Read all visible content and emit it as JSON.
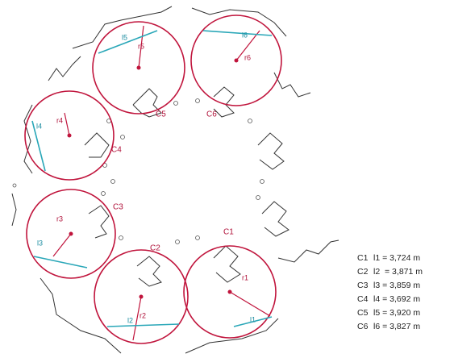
{
  "circles": [
    {
      "label": "C1",
      "radius_label": "r1",
      "chord_label": "l1"
    },
    {
      "label": "C2",
      "radius_label": "r2",
      "chord_label": "l2"
    },
    {
      "label": "C3",
      "radius_label": "r3",
      "chord_label": "l3"
    },
    {
      "label": "C4",
      "radius_label": "r4",
      "chord_label": "l4"
    },
    {
      "label": "C5",
      "radius_label": "r5",
      "chord_label": "l5"
    },
    {
      "label": "C6",
      "radius_label": "r6",
      "chord_label": "l6"
    }
  ],
  "legend": [
    {
      "circle": "C1",
      "text": "l1 = 3,724 m"
    },
    {
      "circle": "C2",
      "text": "l2  = 3,871 m"
    },
    {
      "circle": "C3",
      "text": "l3 = 3,859 m"
    },
    {
      "circle": "C4",
      "text": "l4 = 3,692 m"
    },
    {
      "circle": "C5",
      "text": "l5 = 3,920 m"
    },
    {
      "circle": "C6",
      "text": "l6 = 3,827 m"
    }
  ]
}
